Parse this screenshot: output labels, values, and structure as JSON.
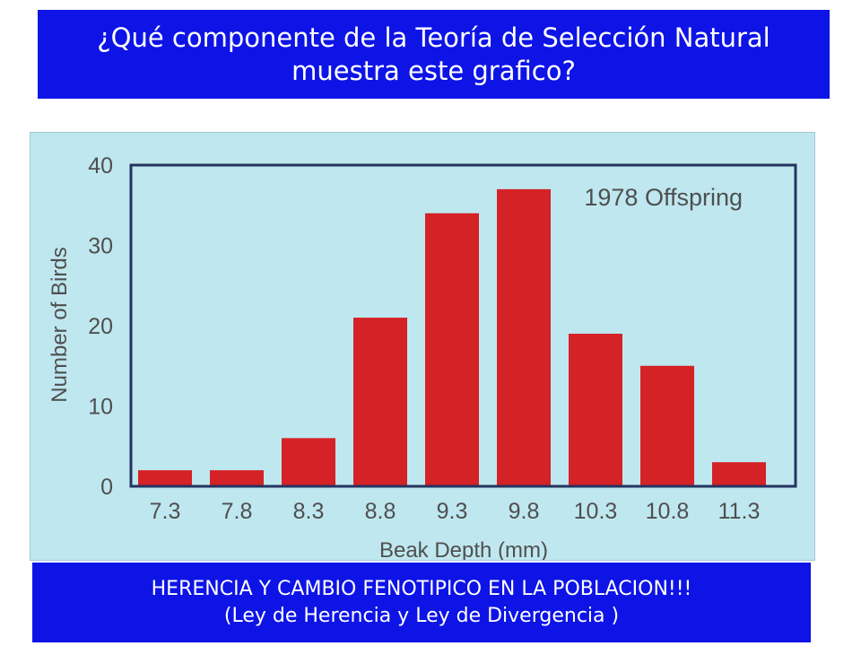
{
  "question": {
    "line1": "¿Qué componente de la Teoría de Selección Natural",
    "line2": "muestra este grafico?"
  },
  "answer": {
    "line1": "HERENCIA Y CAMBIO FENOTIPICO EN LA POBLACION!!!",
    "line2": "(Ley de Herencia y Ley de Divergencia )"
  },
  "colors": {
    "banner": "#0e14e6",
    "chart_background": "#bfe7ef",
    "bars": "#d42226",
    "text": "#4f4f4f"
  },
  "chart_data": {
    "type": "bar",
    "title": "",
    "xlabel": "Beak Depth (mm)",
    "ylabel": "Number of Birds",
    "categories": [
      "7.3",
      "7.8",
      "8.3",
      "8.8",
      "9.3",
      "9.8",
      "10.3",
      "10.8",
      "11.3"
    ],
    "series": [
      {
        "name": "1978 Offspring",
        "values": [
          2,
          2,
          6,
          21,
          34,
          37,
          19,
          15,
          3
        ]
      }
    ],
    "ylim": [
      0,
      40
    ],
    "yticks": [
      "0",
      "10",
      "20",
      "30",
      "40"
    ],
    "grid": false,
    "legend_position": "top-right"
  }
}
